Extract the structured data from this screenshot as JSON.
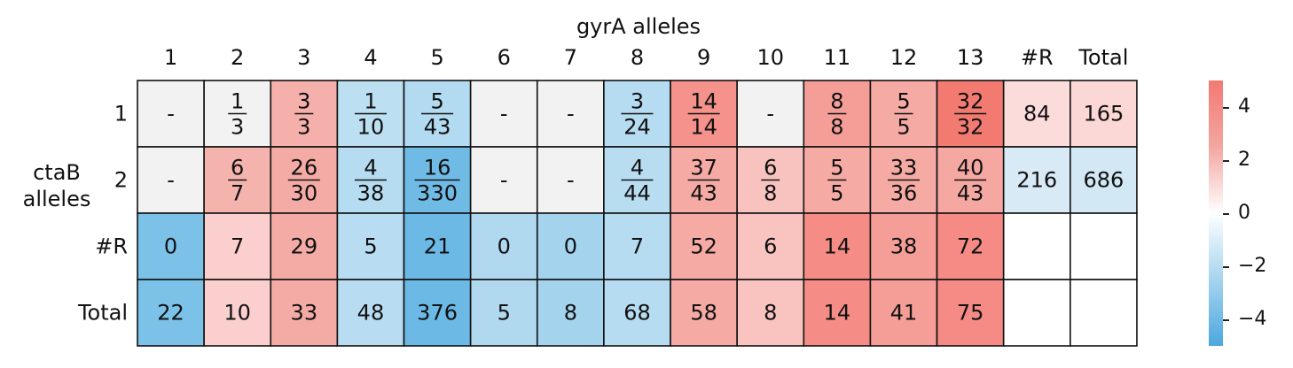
{
  "chart_data": {
    "type": "heatmap",
    "xlabel": "gyrA alleles",
    "ylabel": "ctaB alleles",
    "col_labels": [
      "1",
      "2",
      "3",
      "4",
      "5",
      "6",
      "7",
      "8",
      "9",
      "10",
      "11",
      "12",
      "13",
      "#R",
      "Total"
    ],
    "row_labels": [
      "1",
      "2",
      "#R",
      "Total"
    ],
    "cells": [
      [
        {
          "text": "-",
          "color": "#f2f2f2"
        },
        {
          "num": "1",
          "den": "3",
          "color": "#f2f2f2"
        },
        {
          "num": "3",
          "den": "3",
          "color": "#f5b0ab"
        },
        {
          "num": "1",
          "den": "10",
          "color": "#bcdff2"
        },
        {
          "num": "5",
          "den": "43",
          "color": "#b2daf1"
        },
        {
          "text": "-",
          "color": "#f2f2f2"
        },
        {
          "text": "-",
          "color": "#f2f2f2"
        },
        {
          "num": "3",
          "den": "24",
          "color": "#b6dcf1"
        },
        {
          "num": "14",
          "den": "14",
          "color": "#f4928b"
        },
        {
          "text": "-",
          "color": "#f2f2f2"
        },
        {
          "num": "8",
          "den": "8",
          "color": "#f59e98"
        },
        {
          "num": "5",
          "den": "5",
          "color": "#f5aaa4"
        },
        {
          "num": "32",
          "den": "32",
          "color": "#f37a71"
        },
        {
          "text": "84",
          "color": "#fcdcdb"
        },
        {
          "text": "165",
          "color": "#fbd8d6"
        }
      ],
      [
        {
          "text": "-",
          "color": "#f2f2f2"
        },
        {
          "num": "6",
          "den": "7",
          "color": "#f5b3ae"
        },
        {
          "num": "26",
          "den": "30",
          "color": "#f5aba5"
        },
        {
          "num": "4",
          "den": "38",
          "color": "#b6dcf1"
        },
        {
          "num": "16",
          "den": "330",
          "color": "#6fbbe6"
        },
        {
          "text": "-",
          "color": "#f2f2f2"
        },
        {
          "text": "-",
          "color": "#f2f2f2"
        },
        {
          "num": "4",
          "den": "44",
          "color": "#b8ddf1"
        },
        {
          "num": "37",
          "den": "43",
          "color": "#f5aaa4"
        },
        {
          "num": "6",
          "den": "8",
          "color": "#f8c2bf"
        },
        {
          "num": "5",
          "den": "5",
          "color": "#f5aaa4"
        },
        {
          "num": "33",
          "den": "36",
          "color": "#f5aaa4"
        },
        {
          "num": "40",
          "den": "43",
          "color": "#f5a7a1"
        },
        {
          "text": "216",
          "color": "#d8eaf6"
        },
        {
          "text": "686",
          "color": "#d3e8f5"
        }
      ],
      [
        {
          "text": "0",
          "color": "#7cc1e8"
        },
        {
          "text": "7",
          "color": "#fbcfcd"
        },
        {
          "text": "29",
          "color": "#f5aba5"
        },
        {
          "text": "5",
          "color": "#b8ddf2"
        },
        {
          "text": "21",
          "color": "#6db9e6"
        },
        {
          "text": "0",
          "color": "#b0d9f0"
        },
        {
          "text": "0",
          "color": "#a4d3ee"
        },
        {
          "text": "7",
          "color": "#b6dcf1"
        },
        {
          "text": "52",
          "color": "#f5aaa4"
        },
        {
          "text": "6",
          "color": "#f9c3c0"
        },
        {
          "text": "14",
          "color": "#f58c85"
        },
        {
          "text": "38",
          "color": "#f59d97"
        },
        {
          "text": "72",
          "color": "#f58b84"
        },
        {
          "text": "",
          "color": "#ffffff"
        },
        {
          "text": "",
          "color": "#ffffff"
        }
      ],
      [
        {
          "text": "22",
          "color": "#7cc1e8"
        },
        {
          "text": "10",
          "color": "#fbcfcd"
        },
        {
          "text": "33",
          "color": "#f5aba5"
        },
        {
          "text": "48",
          "color": "#b8ddf2"
        },
        {
          "text": "376",
          "color": "#6db9e6"
        },
        {
          "text": "5",
          "color": "#b0d9f0"
        },
        {
          "text": "8",
          "color": "#a4d3ee"
        },
        {
          "text": "68",
          "color": "#b6dcf1"
        },
        {
          "text": "58",
          "color": "#f5aaa4"
        },
        {
          "text": "8",
          "color": "#f9c3c0"
        },
        {
          "text": "14",
          "color": "#f58c85"
        },
        {
          "text": "41",
          "color": "#f59d97"
        },
        {
          "text": "75",
          "color": "#f58b84"
        },
        {
          "text": "",
          "color": "#ffffff"
        },
        {
          "text": "",
          "color": "#ffffff"
        }
      ]
    ],
    "colorbar": {
      "range": [
        -5,
        5
      ],
      "ticks": [
        {
          "value": 4,
          "label": "4"
        },
        {
          "value": 2,
          "label": "2"
        },
        {
          "value": 0,
          "label": "0"
        },
        {
          "value": -2,
          "label": "−2"
        },
        {
          "value": -4,
          "label": "−4"
        }
      ],
      "top_color": "#f27a71",
      "bottom_color": "#4ca7de"
    }
  }
}
